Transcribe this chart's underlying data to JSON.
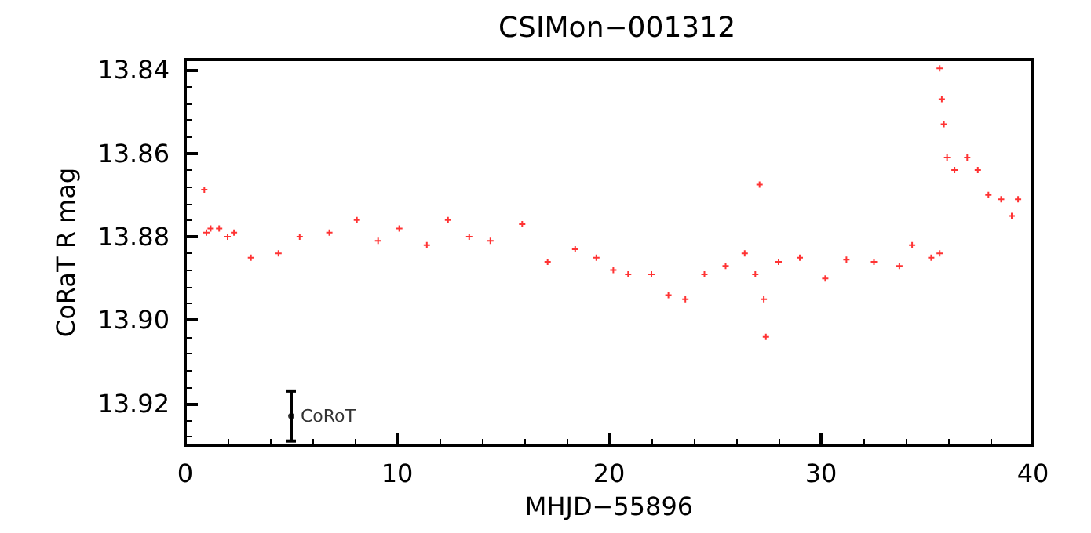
{
  "chart_data": {
    "type": "scatter",
    "title": "CSIMon−001312",
    "xlabel": "MHJD−55896",
    "ylabel": "CoRaT R mag",
    "xlim": [
      0,
      40
    ],
    "xticks": [
      0,
      10,
      20,
      30,
      40
    ],
    "ylim": [
      13.93,
      13.8375
    ],
    "yticks": [
      13.84,
      13.86,
      13.88,
      {
        "value": 13.9,
        "label": "13.90"
      },
      13.92
    ],
    "grid": false,
    "marker": "cross",
    "series": [
      {
        "color": "#ff0000",
        "x": [
          0.9,
          1.0,
          1.2,
          1.6,
          2.0,
          2.3,
          3.1,
          4.4,
          5.4,
          6.8,
          8.1,
          9.1,
          10.1,
          11.4,
          12.4,
          13.4,
          14.4,
          15.9,
          17.1,
          18.4,
          19.4,
          20.2,
          20.9,
          22.0,
          22.8,
          23.6,
          24.5,
          25.5,
          26.4,
          26.9,
          27.1,
          27.3,
          27.4,
          28.0,
          29.0,
          30.2,
          31.2,
          32.5,
          33.7,
          34.3,
          35.2,
          35.6,
          35.6,
          35.7,
          35.8,
          35.95,
          36.3,
          36.9,
          37.4,
          37.9,
          38.5,
          39.0,
          39.3
        ],
        "values": [
          13.8687,
          13.879,
          13.878,
          13.878,
          13.88,
          13.879,
          13.885,
          13.884,
          13.88,
          13.879,
          13.876,
          13.881,
          13.878,
          13.882,
          13.876,
          13.88,
          13.881,
          13.877,
          13.886,
          13.883,
          13.885,
          13.888,
          13.889,
          13.889,
          13.894,
          13.895,
          13.889,
          13.887,
          13.884,
          13.889,
          13.8675,
          13.895,
          13.904,
          13.886,
          13.885,
          13.89,
          13.8855,
          13.886,
          13.887,
          13.882,
          13.885,
          13.884,
          13.8396,
          13.847,
          13.853,
          13.861,
          13.864,
          13.861,
          13.864,
          13.87,
          13.871,
          13.875,
          13.871
        ]
      },
      {
        "color": "#000000",
        "marker": "circle",
        "x": [
          5
        ],
        "values": [
          13.923
        ],
        "errors": [
          0.006
        ]
      }
    ],
    "annotations": [
      {
        "text": "CoRoT",
        "x": 5,
        "y": 13.923
      }
    ]
  }
}
